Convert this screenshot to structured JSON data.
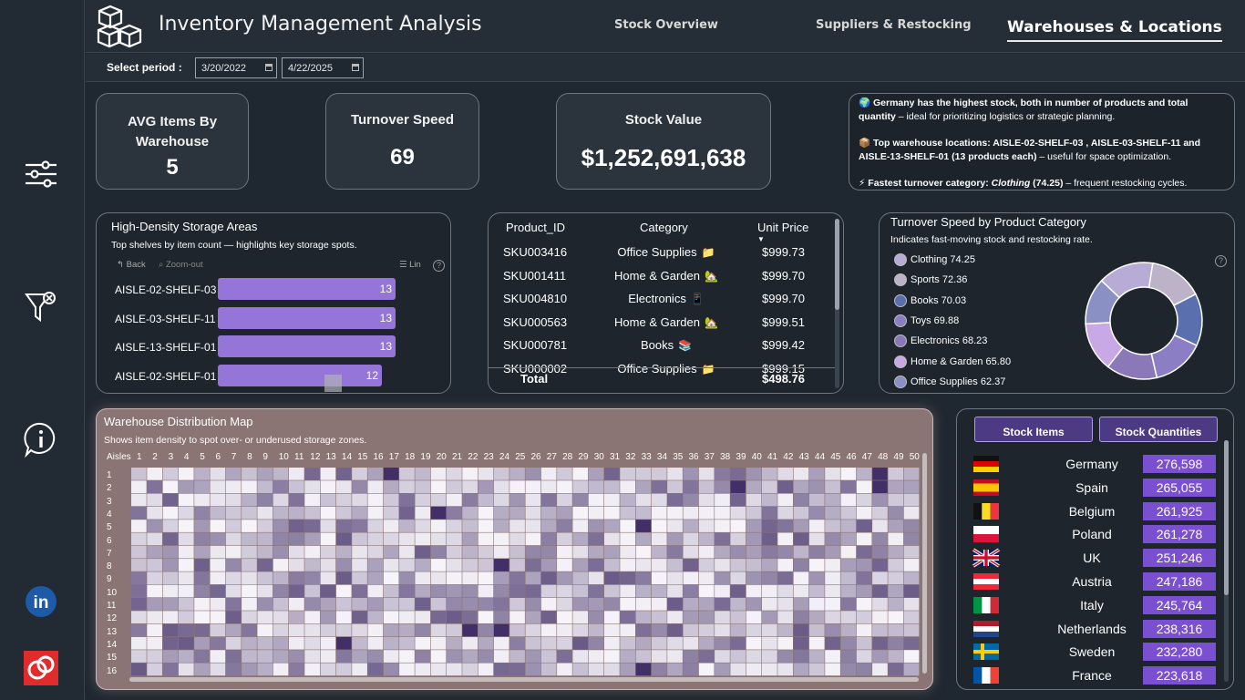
{
  "header": {
    "title": "Inventory Management Analysis",
    "tabs": [
      {
        "label": "Stock Overview",
        "active": false
      },
      {
        "label": "Suppliers & Restocking",
        "active": false
      },
      {
        "label": "Warehouses & Locations",
        "active": true
      }
    ]
  },
  "period": {
    "label": "Select period :",
    "start": "3/20/2022",
    "end": "4/22/2025"
  },
  "sidebar": {
    "icons": [
      "sliders-icon",
      "filter-clear-icon",
      "info-icon",
      "linkedin-icon",
      "brand-logo-icon"
    ]
  },
  "kpis": [
    {
      "title": "AVG Items By Warehouse",
      "value": "5"
    },
    {
      "title": "Turnover Speed",
      "value": "69"
    },
    {
      "title": "Stock Value",
      "value": "$1,252,691,638"
    }
  ],
  "insights": {
    "line1_emoji": "🌍",
    "line1_bold": "Germany has the highest stock, both in number of products  and total quantity",
    "line1_rest": " – ideal for prioritizing logistics or strategic planning.",
    "line2_emoji": "📦",
    "line2_bold": "Top warehouse locations: AISLE-02-SHELF-03 , AISLE-03-SHELF-11 and AISLE-13-SHELF-01 (13 products each)",
    "line2_rest": " – useful for space optimization.",
    "line3_emoji": "⚡",
    "line3_bold_a": "Fastest turnover category: ",
    "line3_italic": "Clothing",
    "line3_bold_b": " (74.25)",
    "line3_rest": " – frequent restocking cycles."
  },
  "density": {
    "title": "High-Density Storage Areas",
    "subtitle": "Top shelves by item count — highlights key storage spots.",
    "back_label": "Back",
    "zoom_label": "Zoom-out",
    "lin_label": "Lin",
    "help": "?"
  },
  "density_chart": {
    "type": "bar",
    "categories": [
      "AISLE-02-SHELF-03",
      "AISLE-03-SHELF-11",
      "AISLE-13-SHELF-01",
      "AISLE-02-SHELF-01"
    ],
    "values": [
      13,
      13,
      13,
      12
    ],
    "xlim": [
      0,
      14
    ]
  },
  "products": {
    "headers": {
      "id": "Product_ID",
      "category": "Category",
      "price": "Unit Price"
    },
    "rows": [
      {
        "id": "SKU003416",
        "category": "Office Supplies",
        "emoji": "📁",
        "price": "$999.73"
      },
      {
        "id": "SKU001411",
        "category": "Home & Garden",
        "emoji": "🏡",
        "price": "$999.70"
      },
      {
        "id": "SKU004810",
        "category": "Electronics",
        "emoji": "📱",
        "price": "$999.70"
      },
      {
        "id": "SKU000563",
        "category": "Home & Garden",
        "emoji": "🏡",
        "price": "$999.51"
      },
      {
        "id": "SKU000781",
        "category": "Books",
        "emoji": "📚",
        "price": "$999.42"
      },
      {
        "id": "SKU000002",
        "category": "Office Supplies",
        "emoji": "📁",
        "price": "$999.15"
      }
    ],
    "total_label": "Total",
    "total_value": "$498.76"
  },
  "turnover": {
    "title": "Turnover Speed by Product Category",
    "subtitle": "Indicates fast-moving stock and restocking rate.",
    "help": "?"
  },
  "chart_data": [
    {
      "type": "pie",
      "donut": true,
      "categories": [
        "Clothing",
        "Sports",
        "Books",
        "Toys",
        "Electronics",
        "Home & Garden",
        "Office Supplies"
      ],
      "values": [
        74.25,
        72.36,
        70.03,
        69.88,
        68.23,
        65.8,
        62.37
      ],
      "colors": [
        "#b7acd6",
        "#bdb3c9",
        "#5a6fae",
        "#8c7ec4",
        "#8a78b8",
        "#c9a8e6",
        "#8a8fc4"
      ],
      "legend_labels": [
        "Clothing 74.25",
        "Sports 72.36",
        "Books 70.03",
        "Toys 69.88",
        "Electronics 68.23",
        "Home & Garden 65.80",
        "Office Supplies 62.37"
      ],
      "legend": "left"
    },
    {
      "type": "heatmap",
      "row_label": "Aisles",
      "columns_from": 1,
      "columns_to": 50,
      "rows_from": 1,
      "rows_to": 16,
      "colors": {
        "low": "#f6f4f9",
        "high": "#3a2560"
      },
      "note": "values not legible; cell intensities rendered procedurally"
    }
  ],
  "countries": {
    "toggle_items": "Stock Items",
    "toggle_quantities": "Stock Quantities",
    "rows": [
      {
        "name": "Germany",
        "value": "276,598",
        "flag": "germany-flag"
      },
      {
        "name": "Spain",
        "value": "265,055",
        "flag": "spain-flag"
      },
      {
        "name": "Belgium",
        "value": "261,925",
        "flag": "belgium-flag"
      },
      {
        "name": "Poland",
        "value": "261,278",
        "flag": "poland-flag"
      },
      {
        "name": "UK",
        "value": "251,246",
        "flag": "uk-flag"
      },
      {
        "name": "Austria",
        "value": "247,186",
        "flag": "austria-flag"
      },
      {
        "name": "Italy",
        "value": "245,764",
        "flag": "italy-flag"
      },
      {
        "name": "Netherlands",
        "value": "238,316",
        "flag": "netherlands-flag"
      },
      {
        "name": "Sweden",
        "value": "232,280",
        "flag": "sweden-flag"
      },
      {
        "name": "France",
        "value": "223,618",
        "flag": "france-flag"
      }
    ]
  },
  "heatmap_panel": {
    "title": "Warehouse Distribution Map",
    "subtitle": "Shows item density to spot over- or underused storage zones.",
    "aisles_label": "Aisles"
  }
}
